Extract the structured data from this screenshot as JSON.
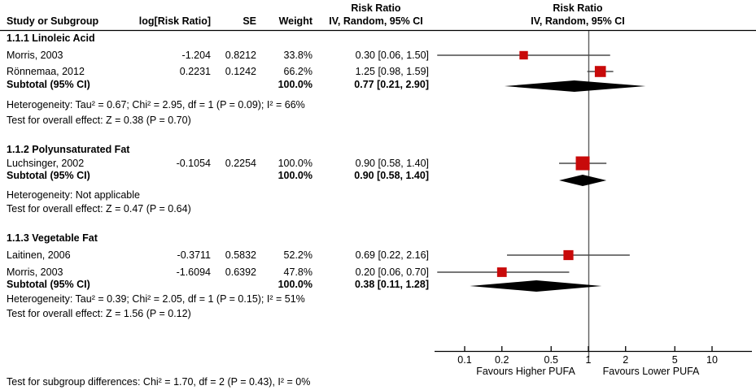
{
  "figure": {
    "columns": {
      "study": "Study or Subgroup",
      "log_rr": "log[Risk Ratio]",
      "se": "SE",
      "weight": "Weight"
    },
    "left_effect_header": {
      "line1": "Risk Ratio",
      "line2": "IV, Random, 95% CI"
    },
    "right_effect_header": {
      "line1": "Risk Ratio",
      "line2": "IV, Random, 95% CI"
    }
  },
  "chart_data": {
    "type": "forest",
    "effect_measure": "Risk Ratio",
    "model": "IV, Random, 95% CI",
    "scale": "log",
    "axis_ticks": [
      0.1,
      0.2,
      0.5,
      1,
      2,
      5,
      10
    ],
    "axis_tick_labels": [
      "0.1",
      "0.2",
      "0.5",
      "1",
      "2",
      "5",
      "10"
    ],
    "favours_left": "Favours Higher PUFA",
    "favours_right": "Favours Lower PUFA",
    "groups": [
      {
        "label": "1.1.1 Linoleic Acid",
        "studies": [
          {
            "name": "Morris, 2003",
            "log_rr": "-1.204",
            "se": "0.8212",
            "weight": "33.8%",
            "weight_pct": 33.8,
            "rr": 0.3,
            "ci_low": 0.06,
            "ci_high": 1.5,
            "ci_label": "0.30 [0.06, 1.50]"
          },
          {
            "name": "Rönnemaa, 2012",
            "log_rr": "0.2231",
            "se": "0.1242",
            "weight": "66.2%",
            "weight_pct": 66.2,
            "rr": 1.25,
            "ci_low": 0.98,
            "ci_high": 1.59,
            "ci_label": "1.25 [0.98, 1.59]"
          }
        ],
        "subtotal": {
          "label": "Subtotal (95% CI)",
          "weight": "100.0%",
          "rr": 0.77,
          "ci_low": 0.21,
          "ci_high": 2.9,
          "ci_label": "0.77 [0.21, 2.90]"
        },
        "heterogeneity": "Heterogeneity: Tau² = 0.67; Chi² = 2.95, df = 1 (P = 0.09); I² = 66%",
        "overall": "Test for overall effect: Z = 0.38 (P = 0.70)"
      },
      {
        "label": "1.1.2 Polyunsaturated Fat",
        "studies": [
          {
            "name": "Luchsinger, 2002",
            "log_rr": "-0.1054",
            "se": "0.2254",
            "weight": "100.0%",
            "weight_pct": 100.0,
            "rr": 0.9,
            "ci_low": 0.58,
            "ci_high": 1.4,
            "ci_label": "0.90 [0.58, 1.40]"
          }
        ],
        "subtotal": {
          "label": "Subtotal (95% CI)",
          "weight": "100.0%",
          "rr": 0.9,
          "ci_low": 0.58,
          "ci_high": 1.4,
          "ci_label": "0.90 [0.58, 1.40]"
        },
        "heterogeneity": "Heterogeneity: Not applicable",
        "overall": "Test for overall effect: Z = 0.47 (P = 0.64)"
      },
      {
        "label": "1.1.3 Vegetable Fat",
        "studies": [
          {
            "name": "Laitinen, 2006",
            "log_rr": "-0.3711",
            "se": "0.5832",
            "weight": "52.2%",
            "weight_pct": 52.2,
            "rr": 0.69,
            "ci_low": 0.22,
            "ci_high": 2.16,
            "ci_label": "0.69 [0.22, 2.16]"
          },
          {
            "name": "Morris, 2003",
            "log_rr": "-1.6094",
            "se": "0.6392",
            "weight": "47.8%",
            "weight_pct": 47.8,
            "rr": 0.2,
            "ci_low": 0.06,
            "ci_high": 0.7,
            "ci_label": "0.20 [0.06, 0.70]"
          }
        ],
        "subtotal": {
          "label": "Subtotal (95% CI)",
          "weight": "100.0%",
          "rr": 0.38,
          "ci_low": 0.11,
          "ci_high": 1.28,
          "ci_label": "0.38 [0.11, 1.28]"
        },
        "heterogeneity": "Heterogeneity: Tau² = 0.39; Chi² = 2.05, df = 1 (P = 0.15); I² = 51%",
        "overall": "Test for overall effect: Z = 1.56 (P = 0.12)"
      }
    ],
    "subgroup_difference": "Test for subgroup differences: Chi² = 1.70, df = 2 (P = 0.43), I² = 0%"
  },
  "colors": {
    "marker": "#C80A0A",
    "diamond": "#000000",
    "ci_line": "#4A4A4A",
    "center_line": "#5E5E5E",
    "axis": "#000000",
    "rule": "#000000",
    "text": "#000000"
  }
}
